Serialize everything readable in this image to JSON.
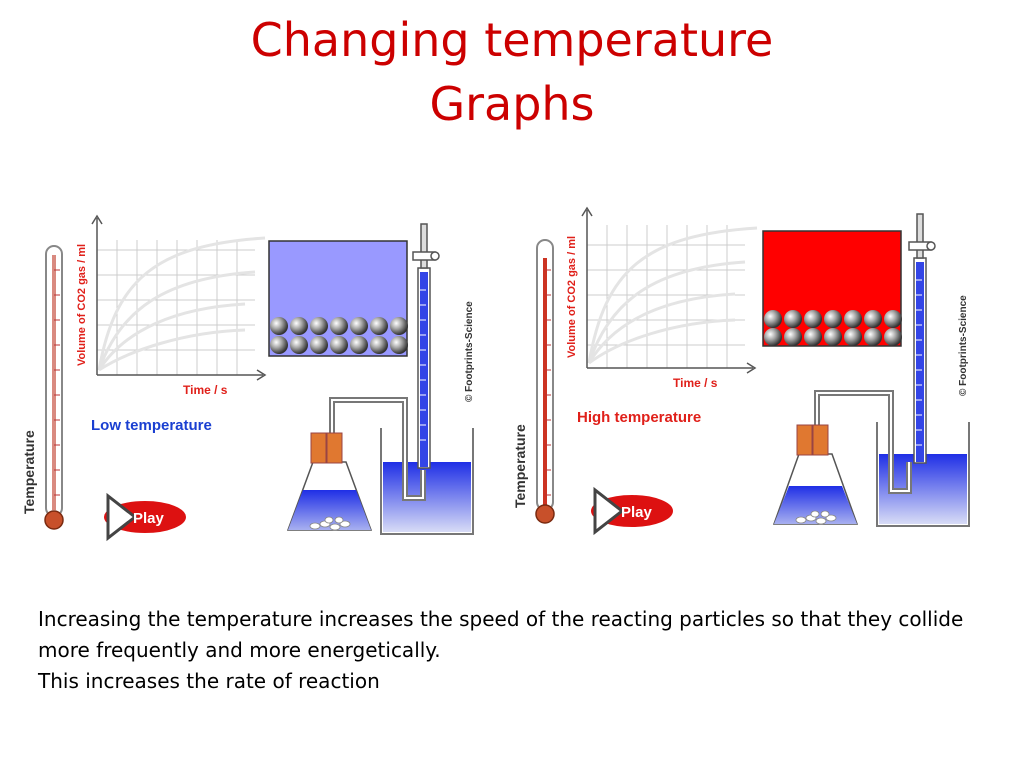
{
  "title": {
    "line1": "Changing temperature",
    "line2": "Graphs"
  },
  "panels": [
    {
      "id": "low",
      "thermometer_label": "Temperature",
      "graph": {
        "ylabel": "Volume of CO2 gas / ml",
        "xlabel": "Time / s"
      },
      "condition_label": "Low temperature",
      "condition_color": "#1a3fd1",
      "play_label": "Play",
      "copyright": "© Footprints-Science",
      "box_color": "#9999ff"
    },
    {
      "id": "high",
      "thermometer_label": "Temperature",
      "graph": {
        "ylabel": "Volume of CO2 gas / ml",
        "xlabel": "Time / s"
      },
      "condition_label": "High temperature",
      "condition_color": "#e0201a",
      "play_label": "Play",
      "copyright": "© Footprints-Science",
      "box_color": "#ff0000"
    }
  ],
  "description": {
    "line1": "Increasing the temperature increases the speed of the reacting particles so that they collide more frequently and more energetically.",
    "line2": "This increases the rate of reaction"
  },
  "colors": {
    "title": "#cc0000",
    "water": "#2233ee",
    "play_button": "#dd1111"
  }
}
